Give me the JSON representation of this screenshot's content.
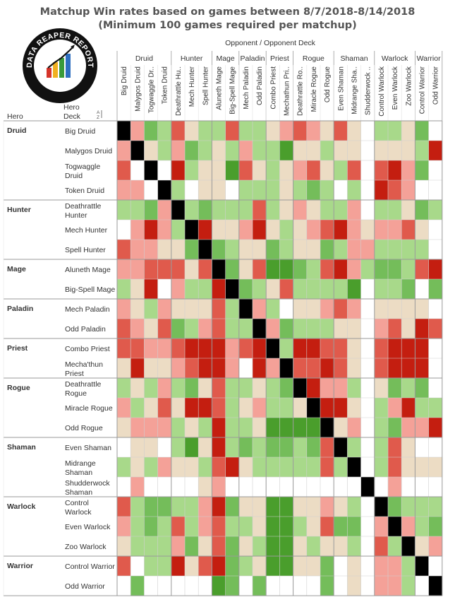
{
  "title_line1": "Matchup Win rates based on games between 8/7/2018-8/14/2018",
  "title_line2": "(Minimum 100 games required per matchup)",
  "logo": {
    "text": "DATA REAPER REPORT",
    "subtext": "VICIOUS SYNDICATE PRESENTS"
  },
  "header": {
    "top_label": "Opponent  /  Opponent Deck",
    "row_hero_label": "Hero",
    "row_deck_label": "Hero Deck",
    "sort_icon": "sort-descending-icon"
  },
  "colors": {
    "tier": {
      "0": "#c41e10",
      "1": "#e05a4c",
      "2": "#f4a198",
      "3": "#ecdcc4",
      "4": "#a8d98a",
      "5": "#74bd5a",
      "6": "#4a9e2c",
      "self": "#000000",
      "empty": "#ffffff"
    },
    "gridline": "#d0d0d0",
    "groupline": "#9a9a9a"
  },
  "chart_data": {
    "type": "heatmap",
    "value_meaning": "win-rate tier: 0 = strongly unfavored (deep red) ... 3 = even (beige) ... 6 = strongly favored (deep green); 's' = mirror match; null = insufficient games",
    "classes": [
      "Druid",
      "Hunter",
      "Mage",
      "Paladin",
      "Priest",
      "Rogue",
      "Shaman",
      "Warlock",
      "Warrior"
    ],
    "decks": [
      {
        "cls": "Druid",
        "label": "Big Druid"
      },
      {
        "cls": "Druid",
        "label": "Malygos Druid"
      },
      {
        "cls": "Druid",
        "label": "Togwaggle Druid"
      },
      {
        "cls": "Druid",
        "label": "Token Druid"
      },
      {
        "cls": "Hunter",
        "label": "Deathrattle Hunter"
      },
      {
        "cls": "Hunter",
        "label": "Mech Hunter"
      },
      {
        "cls": "Hunter",
        "label": "Spell Hunter"
      },
      {
        "cls": "Mage",
        "label": "Aluneth Mage"
      },
      {
        "cls": "Mage",
        "label": "Big-Spell Mage"
      },
      {
        "cls": "Paladin",
        "label": "Mech Paladin"
      },
      {
        "cls": "Paladin",
        "label": "Odd Paladin"
      },
      {
        "cls": "Priest",
        "label": "Combo Priest"
      },
      {
        "cls": "Priest",
        "label": "Mecha'thun Priest"
      },
      {
        "cls": "Rogue",
        "label": "Deathrattle Rogue"
      },
      {
        "cls": "Rogue",
        "label": "Miracle Rogue"
      },
      {
        "cls": "Rogue",
        "label": "Odd Rogue"
      },
      {
        "cls": "Shaman",
        "label": "Even Shaman"
      },
      {
        "cls": "Shaman",
        "label": "Midrange Shaman"
      },
      {
        "cls": "Shaman",
        "label": "Shudderwock Shaman"
      },
      {
        "cls": "Warlock",
        "label": "Control Warlock"
      },
      {
        "cls": "Warlock",
        "label": "Even Warlock"
      },
      {
        "cls": "Warlock",
        "label": "Zoo Warlock"
      },
      {
        "cls": "Warrior",
        "label": "Control Warrior"
      },
      {
        "cls": "Warrior",
        "label": "Odd Warrior"
      }
    ],
    "row_labels": [
      [
        "Big Druid"
      ],
      [
        "Malygos Druid"
      ],
      [
        "Togwaggle",
        "Druid"
      ],
      [
        "Token Druid"
      ],
      [
        "Deathrattle",
        "Hunter"
      ],
      [
        "Mech Hunter"
      ],
      [
        "Spell Hunter"
      ],
      [
        "Aluneth Mage"
      ],
      [
        "Big-Spell Mage"
      ],
      [
        "Mech Paladin"
      ],
      [
        "Odd Paladin"
      ],
      [
        "Combo Priest"
      ],
      [
        "Mecha'thun",
        "Priest"
      ],
      [
        "Deathrattle",
        "Rogue"
      ],
      [
        "Miracle Rogue"
      ],
      [
        "Odd Rogue"
      ],
      [
        "Even Shaman"
      ],
      [
        "Midrange",
        "Shaman"
      ],
      [
        "Shudderwock",
        "Shaman"
      ],
      [
        "Control",
        "Warlock"
      ],
      [
        "Even Warlock"
      ],
      [
        "Zoo Warlock"
      ],
      [
        "Control Warrior"
      ],
      [
        "Odd Warrior"
      ]
    ],
    "col_labels": [
      "Big Druid",
      "Malygos Druid",
      "Togwaggle Dr..",
      "Token Druid",
      "Deathrattle Hu..",
      "Mech Hunter",
      "Spell Hunter",
      "Aluneth Mage",
      "Big-Spell Mage",
      "Mech Paladin",
      "Odd Paladin",
      "Combo Priest",
      "Mechathun Pri..",
      "Deathrattle Ro..",
      "Miracle Rogue",
      "Odd Rogue",
      "Even Shaman",
      "Midrange Sha..",
      "Shudderwock ..",
      "Control Warlock",
      "Even Warlock",
      "Zoo Warlock",
      "Control Warrior",
      "Odd Warrior"
    ],
    "matrix": [
      [
        "s",
        2,
        5,
        4,
        1,
        3,
        4,
        4,
        1,
        4,
        4,
        3,
        2,
        1,
        2,
        3,
        1,
        3,
        null,
        4,
        4,
        3,
        5,
        null
      ],
      [
        2,
        "s",
        3,
        4,
        2,
        5,
        4,
        3,
        4,
        2,
        4,
        4,
        6,
        3,
        3,
        4,
        3,
        3,
        null,
        3,
        3,
        3,
        4,
        0
      ],
      [
        1,
        null,
        "s",
        null,
        0,
        4,
        3,
        3,
        6,
        1,
        3,
        4,
        3,
        2,
        1,
        3,
        4,
        1,
        null,
        1,
        0,
        2,
        5,
        null
      ],
      [
        2,
        2,
        null,
        "s",
        4,
        null,
        3,
        3,
        null,
        4,
        4,
        4,
        3,
        4,
        5,
        4,
        null,
        4,
        null,
        0,
        1,
        2,
        null,
        null
      ],
      [
        4,
        4,
        5,
        2,
        "s",
        4,
        5,
        4,
        4,
        4,
        1,
        4,
        3,
        2,
        3,
        4,
        4,
        2,
        null,
        4,
        4,
        3,
        5,
        4
      ],
      [
        null,
        2,
        0,
        2,
        4,
        "s",
        0,
        3,
        3,
        2,
        0,
        3,
        4,
        3,
        2,
        1,
        0,
        2,
        3,
        2,
        2,
        1,
        3,
        null
      ],
      [
        1,
        2,
        2,
        3,
        3,
        5,
        "s",
        5,
        4,
        3,
        3,
        5,
        4,
        3,
        3,
        5,
        4,
        2,
        2,
        4,
        4,
        4,
        4,
        null
      ],
      [
        2,
        2,
        1,
        1,
        1,
        3,
        1,
        "s",
        5,
        3,
        1,
        6,
        6,
        5,
        4,
        1,
        0,
        2,
        4,
        5,
        5,
        4,
        1,
        0
      ],
      [
        4,
        3,
        0,
        null,
        2,
        4,
        4,
        0,
        "s",
        5,
        4,
        3,
        1,
        4,
        4,
        4,
        4,
        6,
        null,
        4,
        4,
        5,
        null,
        5
      ],
      [
        2,
        3,
        4,
        2,
        3,
        3,
        3,
        1,
        4,
        "s",
        2,
        4,
        null,
        3,
        3,
        2,
        1,
        2,
        null,
        3,
        3,
        3,
        3,
        null
      ],
      [
        1,
        2,
        3,
        1,
        5,
        4,
        2,
        1,
        4,
        4,
        "s",
        2,
        5,
        4,
        4,
        4,
        3,
        3,
        null,
        2,
        1,
        3,
        0,
        1
      ],
      [
        1,
        1,
        2,
        2,
        1,
        0,
        0,
        0,
        2,
        1,
        0,
        "s",
        4,
        0,
        0,
        1,
        1,
        3,
        null,
        1,
        0,
        0,
        0,
        null
      ],
      [
        3,
        0,
        3,
        3,
        2,
        1,
        0,
        0,
        2,
        null,
        0,
        2,
        "s",
        1,
        1,
        0,
        1,
        3,
        null,
        1,
        0,
        0,
        0,
        null
      ],
      [
        4,
        3,
        4,
        2,
        4,
        5,
        3,
        1,
        4,
        4,
        3,
        4,
        5,
        "s",
        0,
        2,
        2,
        4,
        null,
        3,
        5,
        4,
        5,
        null
      ],
      [
        2,
        4,
        3,
        1,
        3,
        0,
        0,
        1,
        4,
        3,
        2,
        4,
        4,
        3,
        "s",
        0,
        0,
        3,
        null,
        4,
        2,
        0,
        4,
        4
      ],
      [
        3,
        2,
        2,
        2,
        4,
        3,
        4,
        0,
        4,
        4,
        3,
        6,
        6,
        6,
        6,
        "s",
        3,
        2,
        null,
        4,
        5,
        2,
        2,
        0
      ],
      [
        null,
        3,
        3,
        null,
        4,
        6,
        3,
        0,
        4,
        5,
        4,
        5,
        5,
        4,
        5,
        1,
        "s",
        4,
        null,
        4,
        1,
        3,
        null,
        null
      ],
      [
        4,
        3,
        4,
        2,
        3,
        3,
        4,
        1,
        0,
        3,
        4,
        4,
        4,
        4,
        4,
        1,
        4,
        "s",
        null,
        4,
        1,
        3,
        3,
        3
      ],
      [
        null,
        2,
        null,
        null,
        null,
        null,
        3,
        2,
        null,
        null,
        null,
        null,
        null,
        null,
        null,
        null,
        null,
        null,
        "s",
        null,
        2,
        null,
        null,
        null
      ],
      [
        1,
        4,
        5,
        5,
        4,
        4,
        2,
        0,
        5,
        3,
        3,
        6,
        6,
        3,
        3,
        2,
        3,
        4,
        null,
        "s",
        5,
        4,
        4,
        4
      ],
      [
        2,
        4,
        5,
        4,
        1,
        4,
        2,
        1,
        4,
        4,
        3,
        6,
        6,
        4,
        3,
        1,
        5,
        5,
        null,
        2,
        "s",
        2,
        4,
        5
      ],
      [
        3,
        4,
        4,
        4,
        2,
        5,
        3,
        1,
        5,
        3,
        4,
        6,
        6,
        3,
        4,
        3,
        3,
        4,
        null,
        1,
        4,
        "s",
        3,
        2
      ],
      [
        1,
        null,
        4,
        4,
        0,
        3,
        1,
        0,
        5,
        4,
        3,
        6,
        6,
        3,
        3,
        5,
        null,
        3,
        null,
        2,
        2,
        4,
        "s",
        null
      ],
      [
        null,
        5,
        null,
        null,
        null,
        null,
        null,
        6,
        5,
        null,
        5,
        null,
        null,
        null,
        null,
        5,
        null,
        3,
        null,
        2,
        2,
        4,
        null,
        "s"
      ]
    ]
  }
}
